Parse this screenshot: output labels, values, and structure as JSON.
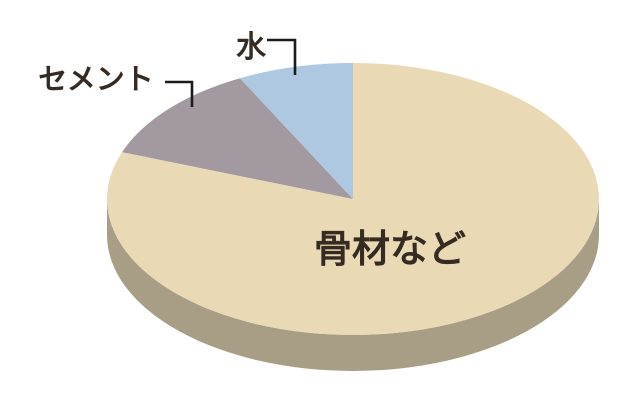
{
  "chart_data": {
    "type": "pie",
    "style": "3d-ellipse",
    "title": "",
    "labels": [
      "水",
      "セメント",
      "骨材など"
    ],
    "values_percent_estimated": [
      7.6,
      11.8,
      80.6
    ],
    "start_angle_deg": 90,
    "direction": "counterclockwise",
    "colors": [
      "#aec8e1",
      "#a29aa0",
      "#e9dab5"
    ],
    "side_color": "#a89e85",
    "label_color": "#352b22",
    "callout_color": "#1b1b1b",
    "background": "#ffffff",
    "legend": "none",
    "axes": "none"
  }
}
